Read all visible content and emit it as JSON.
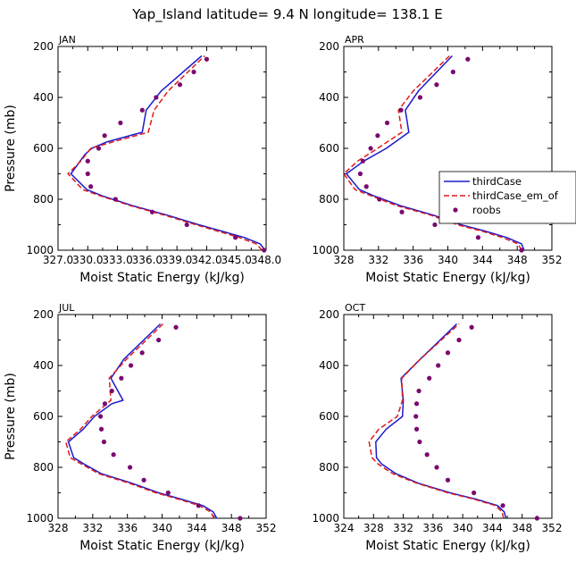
{
  "title": "Yap_Island  latitude= 9.4 N longitude= 138.1 E",
  "legend": {
    "items": [
      {
        "label": "thirdCase",
        "style": "solid",
        "color": "#1a1acc"
      },
      {
        "label": "thirdCase_em_of",
        "style": "dashed",
        "color": "#e01a1a"
      },
      {
        "label": "roobs",
        "style": "marker",
        "color": "#7a0a70"
      }
    ]
  },
  "chart_data": [
    {
      "type": "line",
      "panel": "JAN",
      "xlabel": "Moist Static Energy (kJ/kg)",
      "ylabel": "Pressure (mb)",
      "xlim": [
        327.0,
        348.0
      ],
      "ylim": [
        1000,
        200
      ],
      "xticks": [
        327.0,
        330.0,
        333.0,
        336.0,
        339.0,
        342.0,
        345.0,
        348.0
      ],
      "xtick_labels": [
        "327.0",
        "330.0",
        "333.0",
        "336.0",
        "339.0",
        "342.0",
        "345.0",
        "348.0"
      ],
      "yticks": [
        200,
        400,
        600,
        800,
        1000
      ],
      "ytick_labels": [
        "200",
        "400",
        "600",
        "800",
        "1000"
      ],
      "series": [
        {
          "name": "thirdCase",
          "style": "solid",
          "color": "#1a1acc",
          "points": [
            [
              347.9,
              1000
            ],
            [
              347.4,
              975
            ],
            [
              345.8,
              950
            ],
            [
              343.5,
              925
            ],
            [
              341.2,
              900
            ],
            [
              338.0,
              862
            ],
            [
              334.5,
              825
            ],
            [
              331.5,
              787
            ],
            [
              329.9,
              762
            ],
            [
              328.3,
              700
            ],
            [
              329.7,
              625
            ],
            [
              330.4,
              600
            ],
            [
              331.9,
              575
            ],
            [
              335.5,
              537
            ],
            [
              335.9,
              450
            ],
            [
              337.4,
              375
            ],
            [
              341.5,
              237
            ]
          ]
        },
        {
          "name": "thirdCase_em_of",
          "style": "dashed",
          "color": "#e01a1a",
          "points": [
            [
              347.6,
              1000
            ],
            [
              347.0,
              975
            ],
            [
              345.3,
              950
            ],
            [
              343.1,
              925
            ],
            [
              340.9,
              900
            ],
            [
              337.7,
              862
            ],
            [
              334.3,
              825
            ],
            [
              331.3,
              787
            ],
            [
              329.5,
              762
            ],
            [
              328.0,
              700
            ],
            [
              329.3,
              650
            ],
            [
              330.3,
              600
            ],
            [
              332.5,
              575
            ],
            [
              336.1,
              537
            ],
            [
              336.7,
              450
            ],
            [
              338.1,
              375
            ],
            [
              341.8,
              237
            ]
          ]
        },
        {
          "name": "roobs",
          "style": "marker",
          "color": "#7a0a70",
          "points": [
            [
              347.8,
              1000
            ],
            [
              344.9,
              950
            ],
            [
              340.0,
              900
            ],
            [
              336.5,
              850
            ],
            [
              332.8,
              800
            ],
            [
              330.3,
              750
            ],
            [
              330.0,
              700
            ],
            [
              330.0,
              650
            ],
            [
              331.1,
              600
            ],
            [
              331.7,
              550
            ],
            [
              333.3,
              500
            ],
            [
              335.5,
              450
            ],
            [
              336.9,
              400
            ],
            [
              339.3,
              350
            ],
            [
              340.7,
              300
            ],
            [
              342.0,
              250
            ]
          ]
        }
      ]
    },
    {
      "type": "line",
      "panel": "APR",
      "xlabel": "Moist Static Energy (kJ/kg)",
      "ylabel": "Pressure (mb)",
      "xlim": [
        328,
        352
      ],
      "ylim": [
        1000,
        200
      ],
      "xticks": [
        328,
        332,
        336,
        340,
        344,
        348,
        352
      ],
      "xtick_labels": [
        "328",
        "332",
        "336",
        "340",
        "344",
        "348",
        "352"
      ],
      "yticks": [
        200,
        400,
        600,
        800,
        1000
      ],
      "ytick_labels": [
        "200",
        "400",
        "600",
        "800",
        "1000"
      ],
      "series": [
        {
          "name": "thirdCase",
          "style": "solid",
          "color": "#1a1acc",
          "points": [
            [
              348.8,
              1000
            ],
            [
              348.5,
              975
            ],
            [
              346.8,
              950
            ],
            [
              344.3,
              925
            ],
            [
              341.5,
              900
            ],
            [
              338.3,
              862
            ],
            [
              334.5,
              825
            ],
            [
              331.5,
              787
            ],
            [
              329.8,
              762
            ],
            [
              328.3,
              700
            ],
            [
              330.3,
              650
            ],
            [
              332.9,
              600
            ],
            [
              335.5,
              537
            ],
            [
              335.1,
              450
            ],
            [
              336.6,
              375
            ],
            [
              340.5,
              237
            ]
          ]
        },
        {
          "name": "thirdCase_em_of",
          "style": "dashed",
          "color": "#e01a1a",
          "points": [
            [
              348.5,
              1000
            ],
            [
              348.1,
              975
            ],
            [
              346.3,
              950
            ],
            [
              343.9,
              925
            ],
            [
              341.1,
              900
            ],
            [
              338.0,
              862
            ],
            [
              334.1,
              825
            ],
            [
              331.2,
              787
            ],
            [
              329.3,
              762
            ],
            [
              328.0,
              700
            ],
            [
              329.6,
              650
            ],
            [
              331.9,
              600
            ],
            [
              334.7,
              537
            ],
            [
              334.3,
              450
            ],
            [
              336.0,
              375
            ],
            [
              340.2,
              237
            ]
          ]
        },
        {
          "name": "roobs",
          "style": "marker",
          "color": "#7a0a70",
          "points": [
            [
              348.5,
              1000
            ],
            [
              343.5,
              950
            ],
            [
              338.5,
              900
            ],
            [
              334.7,
              850
            ],
            [
              332.1,
              800
            ],
            [
              330.6,
              750
            ],
            [
              329.9,
              700
            ],
            [
              330.2,
              650
            ],
            [
              331.1,
              600
            ],
            [
              331.9,
              550
            ],
            [
              333.0,
              500
            ],
            [
              334.6,
              450
            ],
            [
              336.8,
              400
            ],
            [
              338.7,
              350
            ],
            [
              340.6,
              300
            ],
            [
              342.3,
              250
            ]
          ]
        }
      ]
    },
    {
      "type": "line",
      "panel": "JUL",
      "xlabel": "Moist Static Energy (kJ/kg)",
      "ylabel": "Pressure (mb)",
      "xlim": [
        328,
        352
      ],
      "ylim": [
        1000,
        200
      ],
      "xticks": [
        328,
        332,
        336,
        340,
        344,
        348,
        352
      ],
      "xtick_labels": [
        "328",
        "332",
        "336",
        "340",
        "344",
        "348",
        "352"
      ],
      "yticks": [
        200,
        400,
        600,
        800,
        1000
      ],
      "ytick_labels": [
        "200",
        "400",
        "600",
        "800",
        "1000"
      ],
      "series": [
        {
          "name": "thirdCase",
          "style": "solid",
          "color": "#1a1acc",
          "points": [
            [
              346.3,
              1000
            ],
            [
              345.9,
              975
            ],
            [
              344.7,
              950
            ],
            [
              342.2,
              925
            ],
            [
              339.6,
              900
            ],
            [
              336.5,
              862
            ],
            [
              333.0,
              825
            ],
            [
              331.0,
              787
            ],
            [
              329.8,
              762
            ],
            [
              329.2,
              700
            ],
            [
              330.9,
              650
            ],
            [
              332.2,
              600
            ],
            [
              334.2,
              550
            ],
            [
              335.5,
              537
            ],
            [
              334.1,
              450
            ],
            [
              335.6,
              375
            ],
            [
              339.8,
              237
            ]
          ]
        },
        {
          "name": "thirdCase_em_of",
          "style": "dashed",
          "color": "#e01a1a",
          "points": [
            [
              346.0,
              1000
            ],
            [
              345.6,
              975
            ],
            [
              344.3,
              950
            ],
            [
              341.9,
              925
            ],
            [
              339.3,
              900
            ],
            [
              336.2,
              862
            ],
            [
              332.7,
              825
            ],
            [
              330.7,
              787
            ],
            [
              329.4,
              762
            ],
            [
              328.9,
              700
            ],
            [
              330.6,
              650
            ],
            [
              331.9,
              600
            ],
            [
              334.1,
              537
            ],
            [
              333.9,
              450
            ],
            [
              335.9,
              375
            ],
            [
              340.1,
              237
            ]
          ]
        },
        {
          "name": "roobs",
          "style": "marker",
          "color": "#7a0a70",
          "points": [
            [
              349.0,
              1000
            ],
            [
              344.2,
              950
            ],
            [
              340.7,
              900
            ],
            [
              337.9,
              850
            ],
            [
              336.3,
              800
            ],
            [
              334.4,
              750
            ],
            [
              333.3,
              700
            ],
            [
              333.0,
              650
            ],
            [
              332.9,
              600
            ],
            [
              333.4,
              550
            ],
            [
              334.2,
              500
            ],
            [
              335.3,
              450
            ],
            [
              336.4,
              400
            ],
            [
              337.7,
              350
            ],
            [
              339.6,
              300
            ],
            [
              341.6,
              250
            ]
          ]
        }
      ]
    },
    {
      "type": "line",
      "panel": "OCT",
      "xlabel": "Moist Static Energy (kJ/kg)",
      "ylabel": "Pressure (mb)",
      "xlim": [
        324,
        352
      ],
      "ylim": [
        1000,
        200
      ],
      "xticks": [
        324,
        328,
        332,
        336,
        340,
        344,
        348,
        352
      ],
      "xtick_labels": [
        "324",
        "328",
        "332",
        "336",
        "340",
        "344",
        "348",
        "352"
      ],
      "yticks": [
        200,
        400,
        600,
        800,
        1000
      ],
      "ytick_labels": [
        "200",
        "400",
        "600",
        "800",
        "1000"
      ],
      "series": [
        {
          "name": "thirdCase",
          "style": "solid",
          "color": "#1a1acc",
          "points": [
            [
              345.8,
              1000
            ],
            [
              345.6,
              975
            ],
            [
              344.7,
              950
            ],
            [
              341.8,
              925
            ],
            [
              338.3,
              900
            ],
            [
              334.0,
              862
            ],
            [
              331.0,
              825
            ],
            [
              329.1,
              787
            ],
            [
              328.4,
              762
            ],
            [
              328.3,
              700
            ],
            [
              329.7,
              650
            ],
            [
              331.9,
              600
            ],
            [
              332.0,
              537
            ],
            [
              331.7,
              450
            ],
            [
              334.3,
              375
            ],
            [
              339.2,
              237
            ]
          ]
        },
        {
          "name": "thirdCase_em_of",
          "style": "dashed",
          "color": "#e01a1a",
          "points": [
            [
              345.5,
              1000
            ],
            [
              345.3,
              975
            ],
            [
              344.4,
              950
            ],
            [
              341.5,
              925
            ],
            [
              338.0,
              900
            ],
            [
              333.8,
              862
            ],
            [
              330.6,
              825
            ],
            [
              328.6,
              787
            ],
            [
              327.8,
              762
            ],
            [
              327.4,
              700
            ],
            [
              328.7,
              650
            ],
            [
              331.2,
              600
            ],
            [
              331.9,
              537
            ],
            [
              331.8,
              450
            ],
            [
              334.3,
              375
            ],
            [
              339.5,
              237
            ]
          ]
        },
        {
          "name": "roobs",
          "style": "marker",
          "color": "#7a0a70",
          "points": [
            [
              350.0,
              1000
            ],
            [
              345.4,
              950
            ],
            [
              341.5,
              900
            ],
            [
              338.0,
              850
            ],
            [
              336.5,
              800
            ],
            [
              335.2,
              750
            ],
            [
              334.2,
              700
            ],
            [
              333.8,
              650
            ],
            [
              333.7,
              600
            ],
            [
              333.8,
              550
            ],
            [
              334.1,
              500
            ],
            [
              335.5,
              450
            ],
            [
              336.7,
              400
            ],
            [
              338.0,
              350
            ],
            [
              339.5,
              300
            ],
            [
              341.2,
              250
            ]
          ]
        }
      ]
    }
  ]
}
